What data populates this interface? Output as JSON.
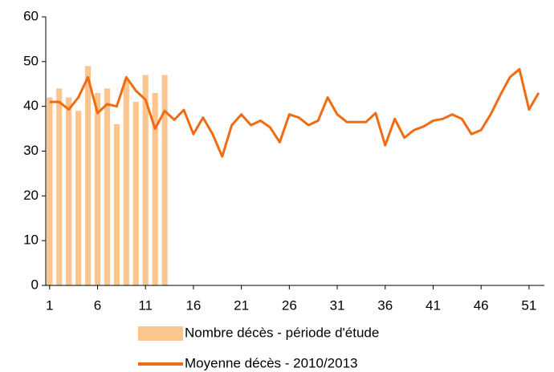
{
  "chart_data": {
    "type": "combo",
    "x": [
      1,
      2,
      3,
      4,
      5,
      6,
      7,
      8,
      9,
      10,
      11,
      12,
      13,
      14,
      15,
      16,
      17,
      18,
      19,
      20,
      21,
      22,
      23,
      24,
      25,
      26,
      27,
      28,
      29,
      30,
      31,
      32,
      33,
      34,
      35,
      36,
      37,
      38,
      39,
      40,
      41,
      42,
      43,
      44,
      45,
      46,
      47,
      48,
      49,
      50,
      51,
      52
    ],
    "xlim": [
      0.6,
      52.6
    ],
    "xticks": [
      1,
      6,
      11,
      16,
      21,
      26,
      31,
      36,
      41,
      46,
      51
    ],
    "ylim": [
      0,
      60
    ],
    "yticks": [
      0,
      10,
      20,
      30,
      40,
      50,
      60
    ],
    "series": [
      {
        "name": "Nombre décès - période d'étude",
        "type": "bar",
        "color": "#fbc590",
        "values": [
          42,
          44,
          42,
          39,
          49,
          43,
          44,
          36,
          46,
          41,
          47,
          43,
          47,
          null,
          null,
          null,
          null,
          null,
          null,
          null,
          null,
          null,
          null,
          null,
          null,
          null,
          null,
          null,
          null,
          null,
          null,
          null,
          null,
          null,
          null,
          null,
          null,
          null,
          null,
          null,
          null,
          null,
          null,
          null,
          null,
          null,
          null,
          null,
          null,
          null,
          null,
          null
        ]
      },
      {
        "name": "Moyenne décès - 2010/2013",
        "type": "line",
        "color": "#f06c12",
        "values": [
          41,
          41,
          39.3,
          42,
          46.5,
          38.5,
          40.5,
          40,
          46.5,
          43.5,
          41.5,
          35,
          39,
          37,
          39.2,
          33.8,
          37.5,
          33.8,
          28.8,
          35.8,
          38.2,
          35.8,
          36.8,
          35.3,
          32,
          38.2,
          37.5,
          35.8,
          36.8,
          42,
          38.2,
          36.5,
          36.5,
          36.5,
          38.5,
          31.3,
          37.2,
          33,
          34.7,
          35.5,
          36.8,
          37.2,
          38.2,
          37.2,
          33.8,
          34.7,
          38.2,
          42.5,
          46.5,
          48.3,
          39.3,
          43
        ]
      }
    ]
  }
}
